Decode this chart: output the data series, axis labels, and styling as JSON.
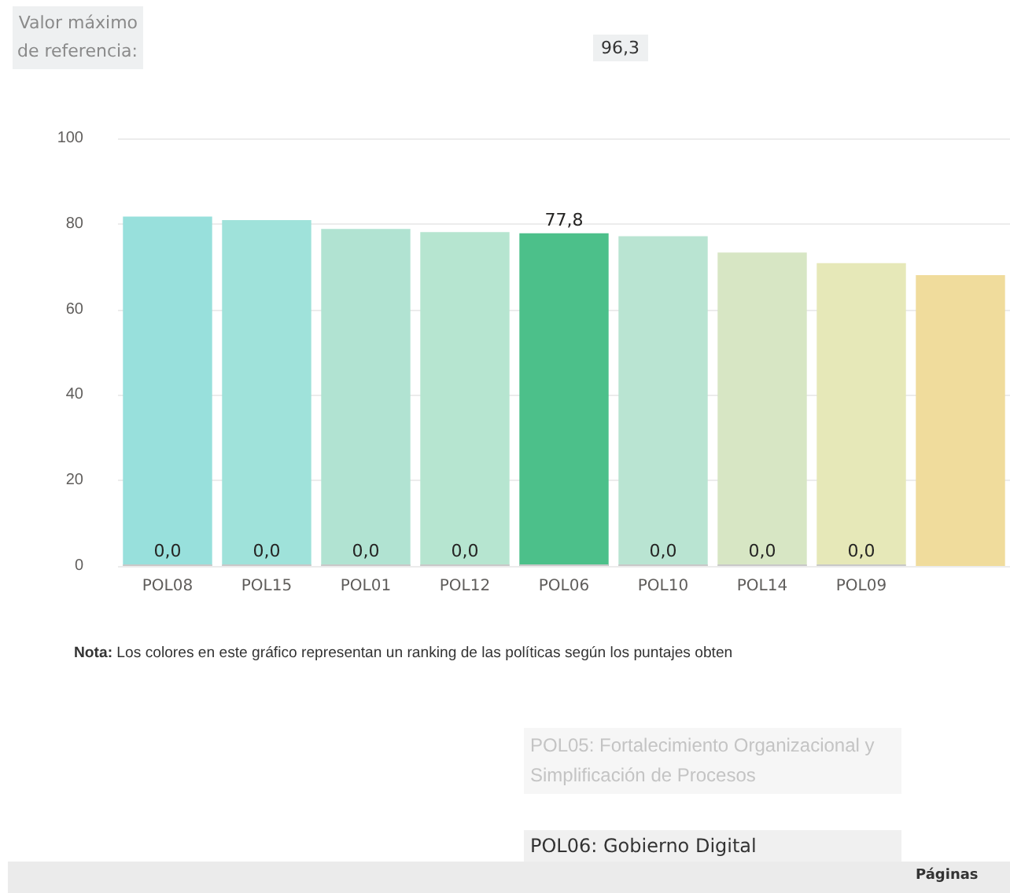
{
  "chart_data": {
    "type": "bar",
    "categories": [
      "POL08",
      "POL15",
      "POL01",
      "POL12",
      "POL06",
      "POL10",
      "POL14",
      "POL09",
      null
    ],
    "stacked": true,
    "series": [
      {
        "color": "#c8c8c8",
        "values": [
          0,
          0,
          0,
          0,
          0,
          0,
          0,
          0,
          null
        ],
        "value_labels": [
          "0,0",
          "0,0",
          "0,0",
          "0,0",
          null,
          "0,0",
          "0,0",
          "0,0",
          null
        ]
      },
      {
        "values": [
          81.7,
          80.9,
          78.8,
          78.1,
          77.8,
          77.1,
          73.3,
          70.8,
          68.0
        ],
        "colors": [
          "#98e0dc",
          "#9fe2da",
          "#b1e3d2",
          "#b6e5d0",
          "#4cc08a",
          "#b9e4d2",
          "#d7e6c4",
          "#e6e8b8",
          "#f0dc9c"
        ],
        "value_labels": [
          null,
          null,
          null,
          null,
          "77,8",
          null,
          null,
          null,
          null
        ]
      }
    ],
    "ylim": [
      0,
      100
    ],
    "yticks": [
      0,
      20,
      40,
      60,
      80,
      100
    ],
    "grid": "y",
    "annotations": [
      "Valor máximo\nde referencia:",
      "96,3",
      "Nota: Los colores en este gráfico representan un ranking de las políticas según los puntajes  obten",
      "POL05: Fortalecimiento Organizacional y Simplificación de Procesos",
      "POL06: Gobierno Digital",
      "Páginas"
    ]
  }
}
